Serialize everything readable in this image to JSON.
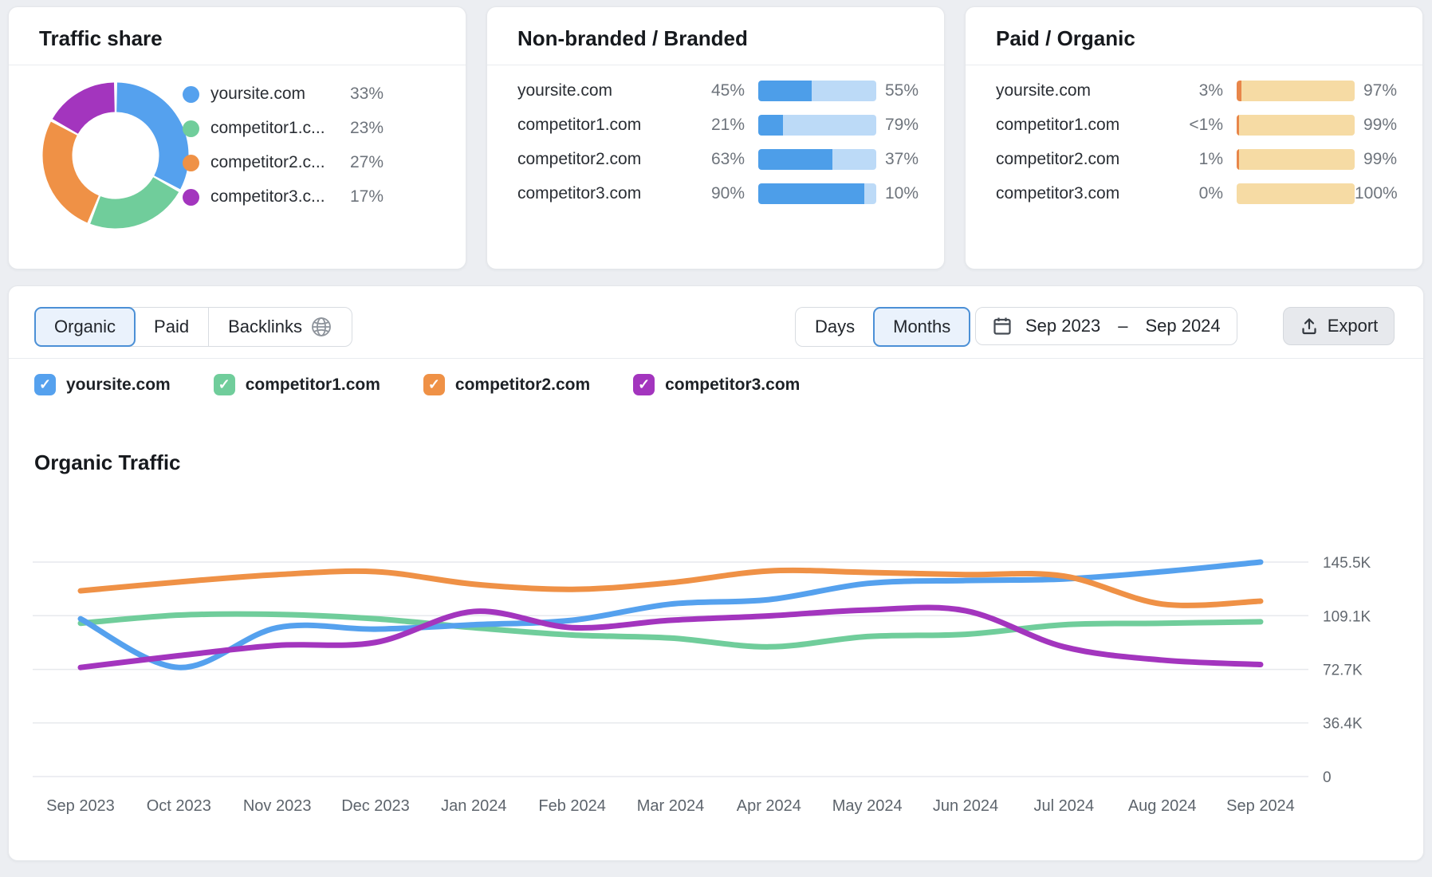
{
  "cards": {
    "traffic_share": {
      "title": "Traffic share",
      "legend": [
        {
          "label": "yoursite.com",
          "value": "33%"
        },
        {
          "label": "competitor1.c...",
          "value": "23%"
        },
        {
          "label": "competitor2.c...",
          "value": "27%"
        },
        {
          "label": "competitor3.c...",
          "value": "17%"
        }
      ]
    },
    "non_branded_branded": {
      "title": "Non-branded / Branded",
      "rows": [
        {
          "domain": "yoursite.com",
          "left": "45%",
          "right": "55%",
          "left_pct": 45
        },
        {
          "domain": "competitor1.com",
          "left": "21%",
          "right": "79%",
          "left_pct": 21
        },
        {
          "domain": "competitor2.com",
          "left": "63%",
          "right": "37%",
          "left_pct": 63
        },
        {
          "domain": "competitor3.com",
          "left": "90%",
          "right": "10%",
          "left_pct": 90
        }
      ]
    },
    "paid_organic": {
      "title": "Paid / Organic",
      "rows": [
        {
          "domain": "yoursite.com",
          "left": "3%",
          "right": "97%",
          "left_pct": 3
        },
        {
          "domain": "competitor1.com",
          "left": "<1%",
          "right": "99%",
          "left_pct": 0.5
        },
        {
          "domain": "competitor2.com",
          "left": "1%",
          "right": "99%",
          "left_pct": 1
        },
        {
          "domain": "competitor3.com",
          "left": "0%",
          "right": "100%",
          "left_pct": 0
        }
      ]
    }
  },
  "toolbar": {
    "tab_organic": "Organic",
    "tab_paid": "Paid",
    "tab_backlinks": "Backlinks",
    "gran_days": "Days",
    "gran_months": "Months",
    "date_from": "Sep 2023",
    "date_separator": "–",
    "date_to": "Sep 2024",
    "export_label": "Export"
  },
  "section_title": "Organic Traffic",
  "colors": {
    "yoursite": "#55a1ee",
    "competitor1": "#70cd9b",
    "competitor2": "#ef9146",
    "competitor3": "#a335be",
    "bar_dark_blue": "#4d9ee9",
    "bar_light_blue": "#bcdaf7",
    "bar_orange": "#e8864a",
    "bar_tan": "#f6dba4",
    "grid": "#e7e9ed",
    "axis_text": "#62686f",
    "selected_segment_border": "#4c90d6",
    "selected_segment_bg": "#eaf2fc"
  },
  "chart_data": [
    {
      "type": "pie",
      "title": "Traffic share",
      "donut": true,
      "slices": [
        {
          "label": "yoursite.com",
          "value": 33,
          "color": "#55a1ee"
        },
        {
          "label": "competitor1.com",
          "value": 23,
          "color": "#70cd9b"
        },
        {
          "label": "competitor2.com",
          "value": 27,
          "color": "#ef9146"
        },
        {
          "label": "competitor3.com",
          "value": 17,
          "color": "#a335be"
        }
      ]
    },
    {
      "type": "line",
      "title": "Organic Traffic",
      "x": [
        "Sep 2023",
        "Oct 2023",
        "Nov 2023",
        "Dec 2023",
        "Jan 2024",
        "Feb 2024",
        "Mar 2024",
        "Apr 2024",
        "May 2024",
        "Jun 2024",
        "Jul 2024",
        "Aug 2024",
        "Sep 2024"
      ],
      "series": [
        {
          "name": "yoursite.com",
          "color": "#55a1ee",
          "checked": true,
          "values": [
            107000,
            74000,
            101000,
            100000,
            103000,
            106000,
            117000,
            120000,
            131000,
            133000,
            134000,
            139000,
            145500
          ]
        },
        {
          "name": "competitor1.com",
          "color": "#70cd9b",
          "checked": true,
          "values": [
            104000,
            109500,
            110000,
            107000,
            101000,
            96000,
            94000,
            88000,
            95000,
            96500,
            103000,
            104000,
            105000
          ]
        },
        {
          "name": "competitor2.com",
          "color": "#ef9146",
          "checked": true,
          "values": [
            126000,
            132000,
            137000,
            139000,
            130500,
            127000,
            131500,
            139500,
            138500,
            137000,
            136000,
            117000,
            119000
          ]
        },
        {
          "name": "competitor3.com",
          "color": "#a335be",
          "checked": true,
          "values": [
            74000,
            82000,
            89000,
            91000,
            112000,
            101000,
            106000,
            109000,
            113000,
            112500,
            88000,
            79000,
            76000
          ]
        }
      ],
      "yticks": [
        {
          "label": "145.5K",
          "value": 145500
        },
        {
          "label": "109.1K",
          "value": 109100
        },
        {
          "label": "72.7K",
          "value": 72700
        },
        {
          "label": "36.4K",
          "value": 36400
        },
        {
          "label": "0",
          "value": 0
        }
      ],
      "ylim": [
        0,
        190000
      ],
      "grid": true,
      "legend_position": "top"
    }
  ]
}
